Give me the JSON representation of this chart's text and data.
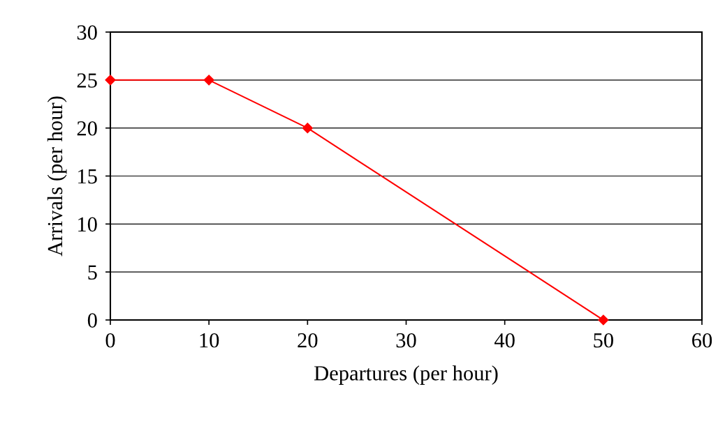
{
  "chart_data": {
    "type": "line",
    "xlabel": "Departures (per hour)",
    "ylabel": "Arrivals (per hour)",
    "x": [
      0,
      10,
      20,
      50
    ],
    "series": [
      {
        "color": "#ff0000",
        "values": [
          25,
          25,
          20,
          0
        ]
      }
    ],
    "xlim": [
      0,
      60
    ],
    "xticks": [
      0,
      10,
      20,
      30,
      40,
      50,
      60
    ],
    "ylim": [
      0,
      30
    ],
    "yticks": [
      0,
      5,
      10,
      15,
      20,
      25,
      30
    ],
    "grid": "y",
    "marker": "diamond",
    "line_style": "solid",
    "legend": false
  }
}
